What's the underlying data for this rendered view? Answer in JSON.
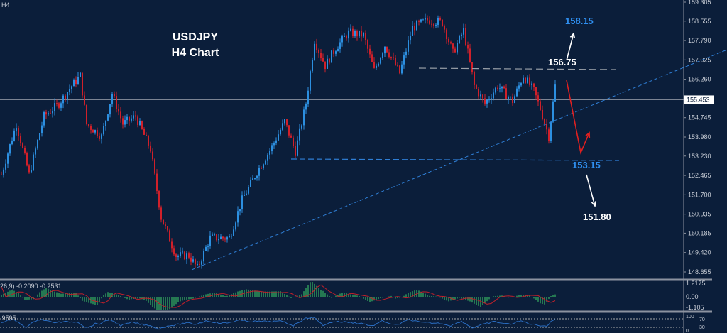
{
  "timeframe_label": "H4",
  "title_line1": "USDJPY",
  "title_line2": "H4 Chart",
  "current_price": "155.453",
  "colors": {
    "background": "#0b1e3a",
    "bull": "#2c8fe0",
    "bear": "#d0202a",
    "trendline": "#2f7fd6",
    "resistance": "#9aa0a8",
    "annotation_blue": "#2f8ff0",
    "annotation_white": "#ffffff",
    "arrow_red": "#e02020",
    "macd_hist": "#3fd36a",
    "macd_signal": "#c0202a",
    "rsi_line": "#2a6cc0"
  },
  "chart_data": {
    "type": "candlestick",
    "symbol": "USDJPY",
    "ylim": [
      148.655,
      159.305
    ],
    "y_ticks": [
      "159.305",
      "158.555",
      "157.790",
      "157.025",
      "156.260",
      "155.453",
      "154.745",
      "153.980",
      "153.230",
      "152.465",
      "151.700",
      "150.935",
      "150.185",
      "149.420",
      "148.655"
    ],
    "grid": false,
    "approx_close_path": [
      [
        0,
        152.5
      ],
      [
        7,
        154.5
      ],
      [
        13,
        152.5
      ],
      [
        20,
        154.8
      ],
      [
        27,
        155.3
      ],
      [
        33,
        156.0
      ],
      [
        37,
        156.4
      ],
      [
        40,
        154.5
      ],
      [
        47,
        154.0
      ],
      [
        52,
        155.7
      ],
      [
        57,
        154.5
      ],
      [
        63,
        154.8
      ],
      [
        70,
        153.5
      ],
      [
        75,
        150.8
      ],
      [
        82,
        149.3
      ],
      [
        88,
        149.3
      ],
      [
        92,
        148.8
      ],
      [
        98,
        150.0
      ],
      [
        107,
        150.0
      ],
      [
        113,
        151.5
      ],
      [
        120,
        152.6
      ],
      [
        127,
        153.6
      ],
      [
        133,
        154.6
      ],
      [
        138,
        153.4
      ],
      [
        143,
        155.3
      ],
      [
        147,
        157.8
      ],
      [
        152,
        156.8
      ],
      [
        157,
        157.5
      ],
      [
        163,
        158.1
      ],
      [
        170,
        158.0
      ],
      [
        175,
        156.6
      ],
      [
        180,
        157.6
      ],
      [
        187,
        156.5
      ],
      [
        193,
        158.3
      ],
      [
        200,
        158.6
      ],
      [
        207,
        158.5
      ],
      [
        212,
        157.3
      ],
      [
        217,
        158.2
      ],
      [
        222,
        156.0
      ],
      [
        227,
        155.3
      ],
      [
        233,
        156.0
      ],
      [
        240,
        155.4
      ],
      [
        245,
        156.4
      ],
      [
        250,
        155.8
      ],
      [
        253,
        155.1
      ],
      [
        257,
        154.0
      ],
      [
        260,
        156.0
      ]
    ],
    "annotations": {
      "target_up": "158.15",
      "resistance": "156.75",
      "support": "153.15",
      "target_down": "151.80"
    },
    "macd": {
      "label": "26,9) -0.2090 -0.2531",
      "ticks": [
        "1.2175",
        "0.00",
        "-1.105"
      ]
    },
    "rsi": {
      "label": ".9595",
      "ticks": [
        "100",
        "70",
        "30",
        "0"
      ]
    }
  }
}
